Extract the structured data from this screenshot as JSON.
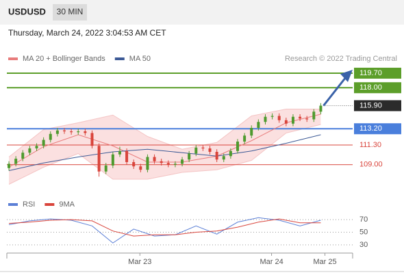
{
  "chart_data": {
    "type": "candlestick",
    "symbol": "USDUSD",
    "timeframe": "30 MIN",
    "subtitle": "Thursday, March 24, 2022 3:04:53 AM CET",
    "source": "Research © 2022 Trading Central",
    "up_color": "#4e9a2e",
    "down_color": "#d9443b",
    "xlim": [
      -0.3,
      49.6
    ],
    "xticks": [
      {
        "value": 18.9,
        "label": "Mar 23"
      },
      {
        "value": 37.9,
        "label": "Mar 24"
      },
      {
        "value": 45.6,
        "label": "Mar 25"
      }
    ],
    "ylim": [
      105.7,
      120.5
    ],
    "open": [
      108.6,
      109.1,
      109.7,
      110.4,
      110.9,
      111.2,
      111.9,
      112.6,
      113.0,
      112.9,
      112.8,
      112.9,
      112.7,
      111.2,
      108.2,
      108.9,
      110.2,
      110.6,
      109.3,
      108.8,
      108.4,
      109.9,
      109.4,
      109.2,
      109.0,
      109.1,
      109.6,
      110.3,
      111.0,
      110.9,
      110.5,
      109.6,
      110.0,
      110.6,
      111.7,
      112.4,
      113.3,
      114.0,
      114.6,
      114.7,
      114.2,
      113.8,
      114.6,
      114.4,
      114.3,
      115.2
    ],
    "high": [
      109.4,
      110.0,
      110.7,
      111.2,
      111.5,
      112.2,
      112.9,
      113.3,
      113.3,
      113.2,
      113.2,
      113.2,
      113.0,
      111.5,
      109.2,
      110.5,
      111.1,
      110.9,
      109.6,
      109.1,
      110.2,
      110.2,
      109.7,
      109.5,
      109.4,
      109.9,
      110.6,
      111.3,
      111.3,
      111.2,
      110.8,
      110.3,
      110.9,
      112.0,
      112.7,
      113.6,
      114.3,
      114.9,
      115.0,
      115.0,
      114.5,
      114.9,
      114.9,
      114.7,
      115.5,
      116.2
    ],
    "low": [
      108.3,
      108.8,
      109.4,
      110.1,
      110.6,
      110.9,
      111.6,
      112.3,
      112.6,
      112.5,
      112.5,
      112.4,
      110.9,
      107.6,
      107.9,
      108.6,
      109.9,
      109.0,
      108.5,
      108.1,
      108.1,
      109.1,
      108.9,
      108.7,
      108.7,
      108.8,
      109.3,
      110.0,
      110.6,
      110.2,
      109.3,
      109.3,
      109.7,
      110.3,
      111.4,
      112.1,
      113.0,
      113.7,
      114.3,
      113.9,
      113.5,
      113.5,
      114.1,
      114.0,
      114.0,
      114.9
    ],
    "close": [
      109.1,
      109.7,
      110.4,
      110.9,
      111.2,
      111.9,
      112.6,
      113.0,
      112.9,
      112.8,
      112.9,
      112.7,
      111.2,
      108.2,
      108.9,
      110.2,
      110.6,
      109.3,
      108.8,
      108.4,
      109.9,
      109.4,
      109.2,
      109.0,
      109.1,
      109.6,
      110.3,
      111.0,
      110.9,
      110.5,
      109.6,
      110.0,
      110.6,
      111.7,
      112.4,
      113.3,
      114.0,
      114.6,
      114.7,
      114.2,
      113.8,
      114.6,
      114.4,
      114.3,
      115.2,
      115.9
    ],
    "indicators": [
      {
        "name": "MA 20 + Bollinger Bands",
        "color": "#e87c7c",
        "x": [
          0,
          5,
          10,
          15,
          20,
          25,
          30,
          35,
          40,
          45
        ],
        "values": [
          108.7,
          111.1,
          112.5,
          111.2,
          109.3,
          109.3,
          110.0,
          111.8,
          113.9,
          114.9
        ],
        "upper": [
          109.9,
          113.1,
          113.9,
          114.8,
          112.3,
          110.8,
          111.6,
          114.7,
          115.5,
          115.5
        ],
        "lower": [
          106.7,
          108.7,
          110.3,
          107.3,
          107.3,
          108.1,
          108.4,
          109.5,
          112.7,
          113.7
        ]
      },
      {
        "name": "MA 50",
        "color": "#3d5a96",
        "x": [
          0,
          5,
          10,
          15,
          20,
          25,
          30,
          35,
          40,
          45
        ],
        "values": [
          108.3,
          109.2,
          109.9,
          110.5,
          110.8,
          110.4,
          110.0,
          110.6,
          111.5,
          112.5
        ]
      }
    ],
    "levels": [
      {
        "value": 119.7,
        "label": "119.70",
        "color": "#5c9e2a",
        "style": "box"
      },
      {
        "value": 118,
        "label": "118.00",
        "color": "#5c9e2a",
        "style": "box"
      },
      {
        "value": 115.9,
        "label": "115.90",
        "color": "#2b2b2b",
        "style": "current"
      },
      {
        "value": 113.2,
        "label": "113.20",
        "color": "#4a7fdc",
        "style": "box"
      },
      {
        "value": 111.3,
        "label": "111.30",
        "color": "#d9443b",
        "style": "text"
      },
      {
        "value": 109,
        "label": "109.00",
        "color": "#d9443b",
        "style": "text"
      }
    ],
    "rsi": {
      "ylim": [
        17,
        82
      ],
      "yticks": [
        70,
        50,
        30
      ],
      "x": [
        0,
        3,
        6,
        9,
        12,
        15,
        18,
        21,
        24,
        27,
        30,
        33,
        36,
        39,
        42,
        45
      ],
      "series": [
        {
          "name": "RSI",
          "color": "#5b7fd6",
          "values": [
            62,
            68,
            71,
            69,
            60,
            33,
            55,
            44,
            46,
            60,
            47,
            66,
            73,
            69,
            60,
            69
          ]
        },
        {
          "name": "9MA",
          "color": "#d9443b",
          "values": [
            64,
            66,
            69,
            70,
            68,
            52,
            44,
            46,
            46,
            50,
            52,
            58,
            66,
            71,
            65,
            65
          ]
        }
      ]
    }
  }
}
